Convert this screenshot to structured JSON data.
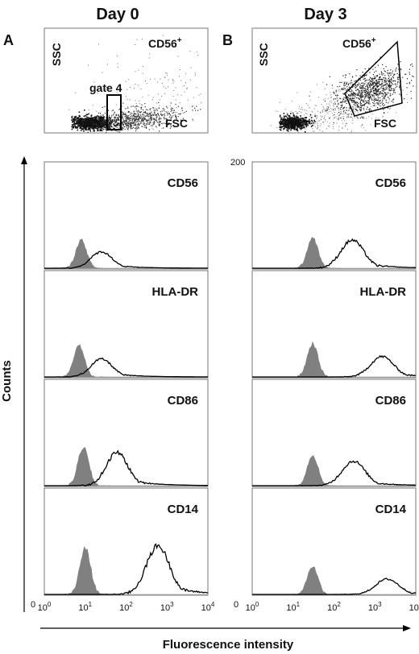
{
  "figure": {
    "column_titles": [
      "Day 0",
      "Day 3"
    ],
    "panel_letters": [
      "A",
      "B"
    ],
    "y_axis_label": "Counts",
    "x_axis_label": "Fluorescence intensity",
    "y_max_label": "200",
    "y_zero_label": "0",
    "scatter": {
      "ssc_label": "SSC",
      "fsc_label": "FSC",
      "cd56_label": "CD56",
      "cd56_sup": "+",
      "gate_label": "gate 4"
    },
    "x_ticks": [
      {
        "base": "10",
        "exp": "0"
      },
      {
        "base": "10",
        "exp": "1"
      },
      {
        "base": "10",
        "exp": "2"
      },
      {
        "base": "10",
        "exp": "3"
      },
      {
        "base": "10",
        "exp": "4"
      }
    ]
  },
  "chart_data": [
    {
      "type": "area",
      "panel": "A",
      "title": "CD56",
      "x_scale": "log",
      "xlim": [
        1,
        10000
      ],
      "ylim": [
        0,
        200
      ],
      "series": [
        {
          "kind": "isotype-filled",
          "peak_x": 8,
          "peak_y": 55
        },
        {
          "kind": "stained-outline",
          "peak_x": 25,
          "peak_y": 32
        }
      ]
    },
    {
      "type": "area",
      "panel": "A",
      "title": "HLA-DR",
      "x_scale": "log",
      "xlim": [
        1,
        10000
      ],
      "ylim": [
        0,
        200
      ],
      "series": [
        {
          "kind": "isotype-filled",
          "peak_x": 7,
          "peak_y": 62
        },
        {
          "kind": "stained-outline",
          "peak_x": 25,
          "peak_y": 35
        }
      ]
    },
    {
      "type": "area",
      "panel": "A",
      "title": "CD86",
      "x_scale": "log",
      "xlim": [
        1,
        10000
      ],
      "ylim": [
        0,
        200
      ],
      "series": [
        {
          "kind": "isotype-filled",
          "peak_x": 9,
          "peak_y": 75
        },
        {
          "kind": "stained-outline",
          "peak_x": 60,
          "peak_y": 65
        }
      ]
    },
    {
      "type": "area",
      "panel": "A",
      "title": "CD14",
      "x_scale": "log",
      "xlim": [
        1,
        10000
      ],
      "ylim": [
        0,
        200
      ],
      "series": [
        {
          "kind": "isotype-filled",
          "peak_x": 10,
          "peak_y": 90
        },
        {
          "kind": "stained-outline",
          "peak_x": 600,
          "peak_y": 95
        }
      ]
    },
    {
      "type": "area",
      "panel": "B",
      "title": "CD56",
      "x_scale": "log",
      "xlim": [
        1,
        10000
      ],
      "ylim": [
        0,
        200
      ],
      "series": [
        {
          "kind": "isotype-filled",
          "peak_x": 30,
          "peak_y": 60
        },
        {
          "kind": "stained-outline",
          "peak_x": 280,
          "peak_y": 55
        }
      ]
    },
    {
      "type": "area",
      "panel": "B",
      "title": "HLA-DR",
      "x_scale": "log",
      "xlim": [
        1,
        10000
      ],
      "ylim": [
        0,
        200
      ],
      "series": [
        {
          "kind": "isotype-filled",
          "peak_x": 30,
          "peak_y": 65
        },
        {
          "kind": "stained-outline",
          "peak_x": 1500,
          "peak_y": 40
        }
      ]
    },
    {
      "type": "area",
      "panel": "B",
      "title": "CD86",
      "x_scale": "log",
      "xlim": [
        1,
        10000
      ],
      "ylim": [
        0,
        200
      ],
      "series": [
        {
          "kind": "isotype-filled",
          "peak_x": 30,
          "peak_y": 60
        },
        {
          "kind": "stained-outline",
          "peak_x": 300,
          "peak_y": 48
        }
      ]
    },
    {
      "type": "area",
      "panel": "B",
      "title": "CD14",
      "x_scale": "log",
      "xlim": [
        1,
        10000
      ],
      "ylim": [
        0,
        200
      ],
      "series": [
        {
          "kind": "isotype-filled",
          "peak_x": 30,
          "peak_y": 55
        },
        {
          "kind": "stained-outline",
          "peak_x": 2000,
          "peak_y": 30
        }
      ]
    }
  ]
}
